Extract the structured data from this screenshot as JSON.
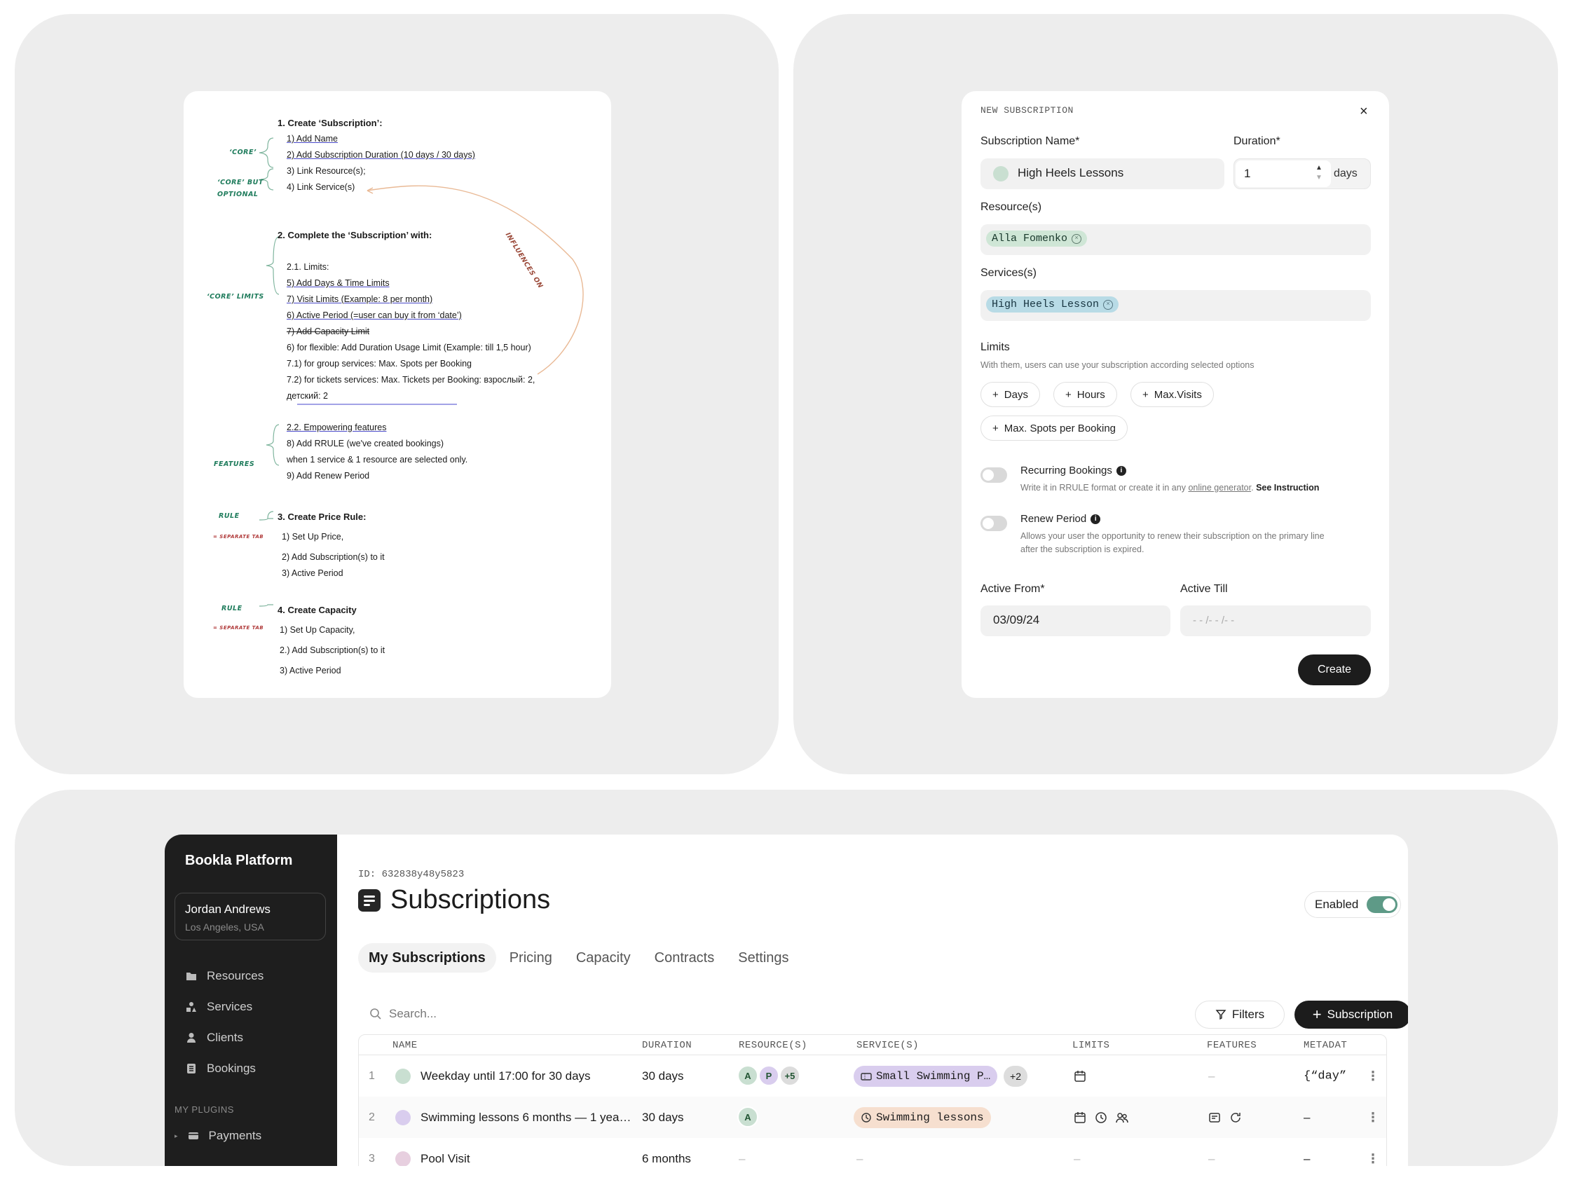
{
  "doc": {
    "lines": [
      {
        "text": "1. Create ‘Subscription’:",
        "style": "h"
      },
      {
        "text": "1) Add Name",
        "style": "u"
      },
      {
        "text": "2) Add Subscription Duration (10 days / 30 days)",
        "style": "u"
      },
      {
        "text": "3) Link Resource(s);",
        "style": ""
      },
      {
        "text": "4) Link Service(s)",
        "style": ""
      },
      {
        "text": "2. Complete the ‘Subscription’ with:",
        "style": "h"
      },
      {
        "text": "2.1. Limits:",
        "style": ""
      },
      {
        "text": "5) Add Days & Time Limits",
        "style": "u"
      },
      {
        "text": "7) Visit Limits (Example: 8 per month)",
        "style": "u"
      },
      {
        "text": "6) Active Period (=user can buy it from ‘date’)",
        "style": "u"
      },
      {
        "text": "7) Add Capacity Limit",
        "style": "s"
      },
      {
        "text": "6) for flexible: Add Duration Usage Limit (Example: till 1,5 hour)",
        "style": ""
      },
      {
        "text": "7.1) for group services: Max. Spots per Booking",
        "style": ""
      },
      {
        "text": "7.2) for tickets services: Max. Tickets per Booking: взрослый: 2,",
        "style": ""
      },
      {
        "text": "детский: 2",
        "style": "u"
      },
      {
        "text": "2.2. Empowering features",
        "style": "u"
      },
      {
        "text": "8) Add RRULE (we've created bookings)",
        "style": ""
      },
      {
        "text": "when 1 service & 1 resource are selected only.",
        "style": ""
      },
      {
        "text": "9) Add Renew Period",
        "style": ""
      },
      {
        "text": "3. Create Price Rule:",
        "style": "h"
      },
      {
        "text": "1) Set Up Price,",
        "style": ""
      },
      {
        "text": "2) Add Subscription(s) to it",
        "style": ""
      },
      {
        "text": "3) Active Period",
        "style": ""
      },
      {
        "text": "4. Create Capacity",
        "style": "h"
      },
      {
        "text": "1) Set Up Capacity,",
        "style": ""
      },
      {
        "text": "2.) Add Subscription(s) to it",
        "style": ""
      },
      {
        "text": "3) Active Period",
        "style": ""
      }
    ],
    "notes": {
      "core": "‘core’",
      "core_optional_1": "‘core’ but",
      "core_optional_2": "optional",
      "core_limits": "‘core’ limits",
      "features": "features",
      "rule1": "rule",
      "rule1_sub": "= separate tab",
      "rule2": "rule",
      "rule2_sub": "= separate tab",
      "influences": "influences on"
    }
  },
  "modal": {
    "title": "NEW SUBSCRIPTION",
    "close": "×",
    "name_label": "Subscription Name*",
    "name_value": "High Heels Lessons",
    "duration_label": "Duration*",
    "duration_value": "1",
    "duration_unit": "days",
    "resources_label": "Resource(s)",
    "resource_chip": "Alla Fomenko",
    "services_label": "Services(s)",
    "service_chip": "High Heels Lesson",
    "limits_title": "Limits",
    "limits_desc": "With them, users can use your subscription according selected options",
    "limit_buttons": [
      "Days",
      "Hours",
      "Max.Visits",
      "Max. Spots per Booking"
    ],
    "recurring_label": "Recurring Bookings",
    "recurring_desc_1": "Write it in RRULE format or create it in any",
    "recurring_link": "online generator",
    "recurring_desc_2": ".",
    "recurring_instruction": "See Instruction",
    "renew_label": "Renew Period",
    "renew_desc_1": "Allows your user the opportunity to renew their subscription on the primary line",
    "renew_desc_2": "after the subscription is expired.",
    "active_from_label": "Active From*",
    "active_from_value": "03/09/24",
    "active_till_label": "Active Till",
    "active_till_placeholder": "- - /- - /- -",
    "create_label": "Create"
  },
  "app": {
    "brand": "Bookla Platform",
    "user_name": "Jordan Andrews",
    "user_location": "Los Angeles, USA",
    "nav": [
      "Resources",
      "Services",
      "Clients",
      "Bookings"
    ],
    "plugins_heading": "MY PLUGINS",
    "plugins": [
      "Payments"
    ],
    "id_label": "ID: 632838y48y5823",
    "page_title": "Subscriptions",
    "enabled_label": "Enabled",
    "tabs": [
      "My Subscriptions",
      "Pricing",
      "Capacity",
      "Contracts",
      "Settings"
    ],
    "search_placeholder": "Search...",
    "filters_label": "Filters",
    "add_label": "Subscription",
    "columns": [
      "NAME",
      "DURATION",
      "RESOURCE(S)",
      "SERVICE(S)",
      "LIMITS",
      "FEATURES",
      "METADAT"
    ],
    "rows": [
      {
        "n": "1",
        "name": "Weekday until 17:00 for 30 days",
        "duration": "30 days",
        "avatars": [
          "A",
          "P"
        ],
        "more_resources": "+5",
        "service": "Small Swimming P…",
        "more_services": "+2",
        "features": "–",
        "metadata": "{“day”"
      },
      {
        "n": "2",
        "name": "Swimming lessons 6 months — 1 yea…",
        "duration": "30 days",
        "avatars": [
          "A"
        ],
        "service": "Swimming lessons",
        "metadata": "–"
      },
      {
        "n": "3",
        "name": "Pool Visit",
        "duration": "6 months",
        "resources": "–",
        "service": "–",
        "limits": "–",
        "features": "–",
        "metadata": "–"
      }
    ],
    "colors": {
      "green_dot": "#c9dfd1",
      "purple_dot": "#d9cdee",
      "pink_dot": "#e7cfdf",
      "toggle_on": "#5e9a87"
    }
  }
}
